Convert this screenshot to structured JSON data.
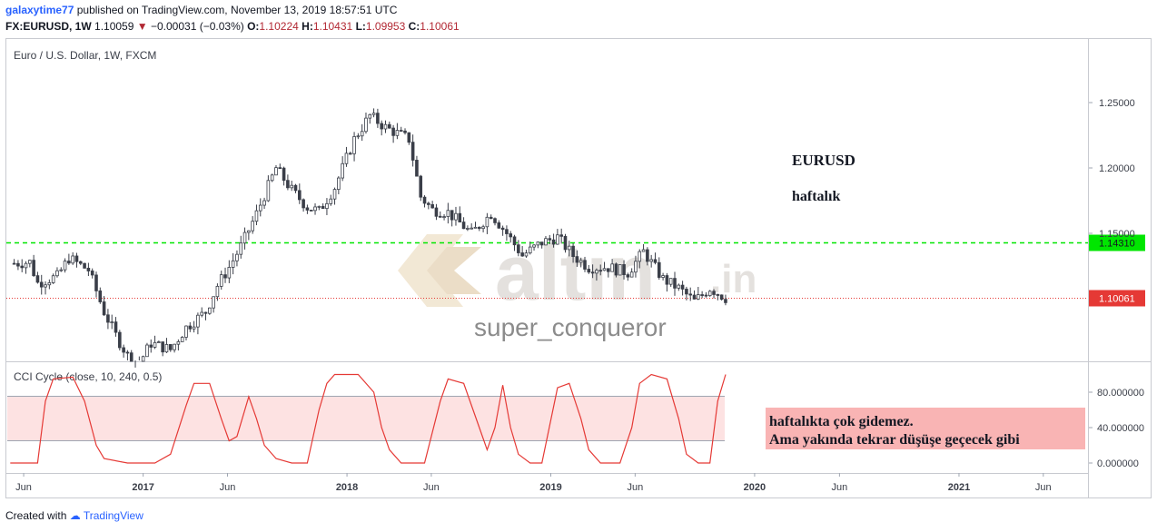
{
  "header": {
    "user": "galaxytime77",
    "published_text": "published on TradingView.com, November 13, 2019 18:57:51 UTC",
    "symbol": "FX:EURUSD, 1W",
    "last": "1.10059",
    "change": "−0.00031 (−0.03%)",
    "o_label": "O:",
    "o": "1.10224",
    "h_label": "H:",
    "h": "1.10431",
    "l_label": "L:",
    "l": "1.09953",
    "c_label": "C:",
    "c": "1.10061"
  },
  "chart_title": "Euro / U.S. Dollar, 1W, FXCM",
  "annotations": {
    "eurusd": "EURUSD",
    "haftalik": "haftalık",
    "note_line1": "haftalıkta çok gidemez.",
    "note_line2": "Ama yakında tekrar düşüşe geçecek gibi",
    "watermark_brand": "altın",
    "watermark_suffix": ".in",
    "watermark_user": "super_conqueror"
  },
  "footer": {
    "created_with": "Created with",
    "brand": "TradingView"
  },
  "colors": {
    "up": "#26a69a",
    "down": "#ef5350",
    "candle": "#3a3e48",
    "level_green": "#00e600",
    "level_red": "#e53935",
    "cci_line": "#e53935",
    "cci_band": "#fde2e2",
    "note_bg": "#f9b4b4"
  },
  "chart_data": [
    {
      "type": "candlestick",
      "title": "Euro / U.S. Dollar, 1W, FXCM",
      "x_ticks": [
        "Jun",
        "2017",
        "Jun",
        "2018",
        "Jun",
        "2019",
        "Jun",
        "2020",
        "Jun",
        "2021",
        "Jun"
      ],
      "y_ticks": [
        "1.25000",
        "1.20000",
        "1.15000"
      ],
      "ylim": [
        1.053,
        1.29
      ],
      "horizontal_levels": [
        {
          "value": 1.1431,
          "label": "1.14310",
          "style": "dashed",
          "color": "#00e600"
        },
        {
          "value": 1.10061,
          "label": "1.10061",
          "style": "dotted",
          "color": "#e53935"
        }
      ],
      "weekly_close_path": [
        [
          "2016-05-15",
          1.127
        ],
        [
          "2016-06-12",
          1.128
        ],
        [
          "2016-06-26",
          1.112
        ],
        [
          "2016-07-31",
          1.117
        ],
        [
          "2016-08-21",
          1.131
        ],
        [
          "2016-09-25",
          1.122
        ],
        [
          "2016-10-23",
          1.09
        ],
        [
          "2016-11-13",
          1.072
        ],
        [
          "2016-12-18",
          1.046
        ],
        [
          "2017-01-15",
          1.066
        ],
        [
          "2017-02-19",
          1.061
        ],
        [
          "2017-03-19",
          1.078
        ],
        [
          "2017-04-23",
          1.09
        ],
        [
          "2017-05-14",
          1.11
        ],
        [
          "2017-06-04",
          1.124
        ],
        [
          "2017-06-25",
          1.14
        ],
        [
          "2017-07-23",
          1.165
        ],
        [
          "2017-08-27",
          1.2
        ],
        [
          "2017-09-24",
          1.183
        ],
        [
          "2017-10-22",
          1.17
        ],
        [
          "2017-11-12",
          1.167
        ],
        [
          "2017-12-10",
          1.185
        ],
        [
          "2018-01-14",
          1.222
        ],
        [
          "2018-02-11",
          1.24
        ],
        [
          "2018-03-11",
          1.231
        ],
        [
          "2018-04-22",
          1.222
        ],
        [
          "2018-05-13",
          1.178
        ],
        [
          "2018-06-03",
          1.168
        ],
        [
          "2018-07-01",
          1.166
        ],
        [
          "2018-08-12",
          1.15
        ],
        [
          "2018-09-16",
          1.165
        ],
        [
          "2018-10-14",
          1.15
        ],
        [
          "2018-11-11",
          1.133
        ],
        [
          "2018-12-16",
          1.143
        ],
        [
          "2019-01-13",
          1.147
        ],
        [
          "2019-02-10",
          1.133
        ],
        [
          "2019-03-10",
          1.124
        ],
        [
          "2019-04-14",
          1.124
        ],
        [
          "2019-05-19",
          1.12
        ],
        [
          "2019-06-16",
          1.136
        ],
        [
          "2019-07-21",
          1.115
        ],
        [
          "2019-08-18",
          1.108
        ],
        [
          "2019-09-15",
          1.098
        ],
        [
          "2019-10-13",
          1.108
        ],
        [
          "2019-11-10",
          1.1006
        ]
      ]
    },
    {
      "type": "line",
      "title": "CCI Cycle (close, 10, 240, 0.5)",
      "y_ticks": [
        "80.000000",
        "40.000000",
        "0.000000"
      ],
      "ylim": [
        -10,
        110
      ],
      "band": [
        25,
        75
      ],
      "series": [
        {
          "values": [
            [
              "2016-05-08",
              0
            ],
            [
              "2016-06-26",
              0
            ],
            [
              "2016-07-10",
              70
            ],
            [
              "2016-07-24",
              95
            ],
            [
              "2016-08-28",
              97
            ],
            [
              "2016-09-18",
              70
            ],
            [
              "2016-10-09",
              20
            ],
            [
              "2016-10-23",
              5
            ],
            [
              "2016-12-04",
              0
            ],
            [
              "2016-12-25",
              0
            ],
            [
              "2017-01-22",
              0
            ],
            [
              "2017-02-19",
              10
            ],
            [
              "2017-03-19",
              65
            ],
            [
              "2017-04-02",
              90
            ],
            [
              "2017-04-30",
              90
            ],
            [
              "2017-05-21",
              50
            ],
            [
              "2017-06-04",
              25
            ],
            [
              "2017-06-18",
              30
            ],
            [
              "2017-07-09",
              75
            ],
            [
              "2017-07-23",
              50
            ],
            [
              "2017-08-06",
              20
            ],
            [
              "2017-08-27",
              5
            ],
            [
              "2017-09-24",
              0
            ],
            [
              "2017-10-22",
              0
            ],
            [
              "2017-11-12",
              60
            ],
            [
              "2017-11-26",
              90
            ],
            [
              "2017-12-10",
              100
            ],
            [
              "2018-01-21",
              100
            ],
            [
              "2018-02-18",
              80
            ],
            [
              "2018-03-04",
              40
            ],
            [
              "2018-03-18",
              15
            ],
            [
              "2018-04-08",
              0
            ],
            [
              "2018-05-20",
              0
            ],
            [
              "2018-06-17",
              70
            ],
            [
              "2018-07-01",
              95
            ],
            [
              "2018-07-29",
              90
            ],
            [
              "2018-08-26",
              40
            ],
            [
              "2018-09-09",
              15
            ],
            [
              "2018-09-23",
              40
            ],
            [
              "2018-10-07",
              88
            ],
            [
              "2018-10-21",
              40
            ],
            [
              "2018-11-04",
              10
            ],
            [
              "2018-11-25",
              0
            ],
            [
              "2018-12-16",
              0
            ],
            [
              "2019-01-13",
              85
            ],
            [
              "2019-02-03",
              90
            ],
            [
              "2019-02-24",
              50
            ],
            [
              "2019-03-10",
              15
            ],
            [
              "2019-03-31",
              0
            ],
            [
              "2019-05-05",
              0
            ],
            [
              "2019-05-26",
              40
            ],
            [
              "2019-06-09",
              90
            ],
            [
              "2019-06-30",
              100
            ],
            [
              "2019-07-28",
              95
            ],
            [
              "2019-08-18",
              50
            ],
            [
              "2019-09-01",
              10
            ],
            [
              "2019-09-22",
              0
            ],
            [
              "2019-10-13",
              0
            ],
            [
              "2019-10-27",
              70
            ],
            [
              "2019-11-10",
              100
            ]
          ]
        }
      ]
    }
  ]
}
